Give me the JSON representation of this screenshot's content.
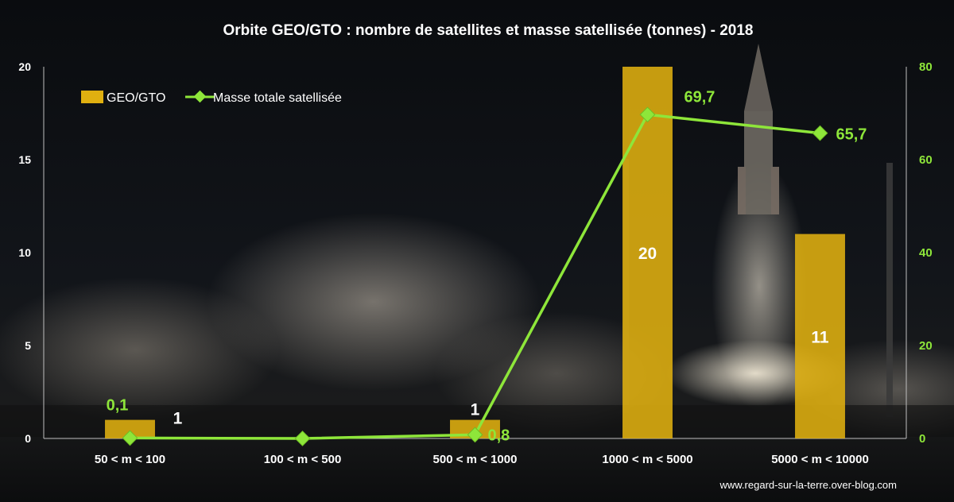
{
  "chart_data": {
    "type": "bar",
    "title": "Orbite GEO/GTO : nombre de satellites et masse satellisée (tonnes) - 2018",
    "categories": [
      "50 < m < 100",
      "100 < m < 500",
      "500 < m < 1000",
      "1000 < m < 5000",
      "5000 < m < 10000"
    ],
    "series": [
      {
        "name": "GEO/GTO",
        "type": "bar",
        "axis": "left",
        "values": [
          1,
          0,
          1,
          20,
          11
        ],
        "labels": [
          "1",
          "",
          "1",
          "20",
          "11"
        ]
      },
      {
        "name": "Masse totale satellisée",
        "type": "line",
        "axis": "right",
        "values": [
          0.1,
          0,
          0.8,
          69.7,
          65.7
        ],
        "labels": [
          "0,1",
          "",
          "0,8",
          "69,7",
          "65,7"
        ]
      }
    ],
    "y_left": {
      "range": [
        0,
        20
      ],
      "ticks": [
        "0",
        "5",
        "10",
        "15",
        "20"
      ]
    },
    "y_right": {
      "range": [
        0,
        80
      ],
      "ticks": [
        "0",
        "20",
        "40",
        "60",
        "80"
      ]
    },
    "legend_position": "top-left",
    "grid": false,
    "colors": {
      "bar": "#e0b010",
      "line": "#8ee63a",
      "text": "#ffffff"
    }
  },
  "credit": "www.regard-sur-la-terre.over-blog.com"
}
